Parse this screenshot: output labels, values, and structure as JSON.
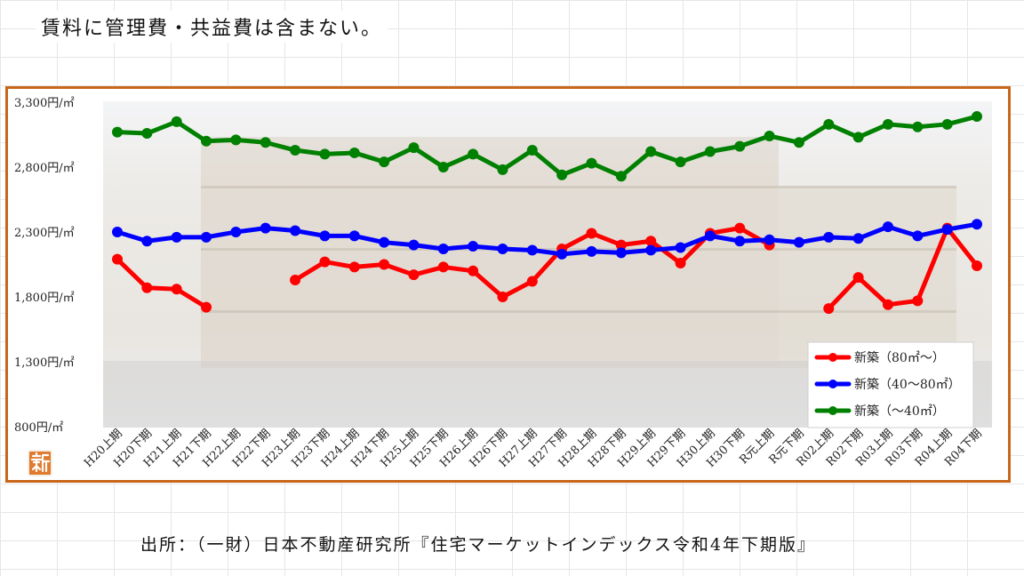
{
  "page": {
    "note": "賃料に管理費・共益費は含まない。",
    "source": "出所：（一財）日本不動産研究所『住宅マーケットインデックス令和4年下期版』",
    "badge_icon": "shin-kanji-badge-icon"
  },
  "chart_data": {
    "type": "line",
    "title": "",
    "xlabel": "",
    "ylabel": "",
    "ylim": [
      800,
      3300
    ],
    "yticks": [
      3300,
      2800,
      2300,
      1800,
      1300,
      800
    ],
    "ytick_labels": [
      "3,300円/㎡",
      "2,800円/㎡",
      "2,300円/㎡",
      "1,800円/㎡",
      "1,300円/㎡",
      "800円/㎡"
    ],
    "grid": false,
    "legend_position": "bottom-right",
    "categories": [
      "H20上期",
      "H20下期",
      "H21上期",
      "H21下期",
      "H22上期",
      "H22下期",
      "H23上期",
      "H23下期",
      "H24上期",
      "H24下期",
      "H25上期",
      "H25下期",
      "H26上期",
      "H26下期",
      "H27上期",
      "H27下期",
      "H28上期",
      "H28下期",
      "H29上期",
      "H29下期",
      "H30上期",
      "H30下期",
      "R元上期",
      "R元下期",
      "R02上期",
      "R02下期",
      "R03上期",
      "R03下期",
      "R04上期",
      "R04下期"
    ],
    "series": [
      {
        "name": "新築（80㎡～）",
        "color": "#ff0000",
        "values": [
          2090,
          1870,
          1860,
          1720,
          null,
          null,
          1930,
          2070,
          2030,
          2050,
          1970,
          2030,
          2000,
          1800,
          1920,
          2170,
          2290,
          2200,
          2230,
          2060,
          2290,
          2330,
          2200,
          null,
          1710,
          1950,
          1740,
          1770,
          2330,
          2040
        ]
      },
      {
        "name": "新築（40～80㎡）",
        "color": "#0000ff",
        "values": [
          2300,
          2230,
          2260,
          2260,
          2300,
          2330,
          2310,
          2270,
          2270,
          2220,
          2200,
          2170,
          2190,
          2170,
          2160,
          2130,
          2150,
          2140,
          2160,
          2180,
          2270,
          2230,
          2240,
          2220,
          2260,
          2250,
          2340,
          2270,
          2320,
          2360
        ]
      },
      {
        "name": "新築（～40㎡）",
        "color": "#008000",
        "values": [
          3070,
          3060,
          3150,
          3000,
          3010,
          2990,
          2930,
          2900,
          2910,
          2840,
          2950,
          2800,
          2900,
          2780,
          2930,
          2740,
          2830,
          2730,
          2920,
          2840,
          2920,
          2960,
          3040,
          2990,
          3130,
          3030,
          3130,
          3110,
          3130,
          3190
        ]
      }
    ]
  }
}
